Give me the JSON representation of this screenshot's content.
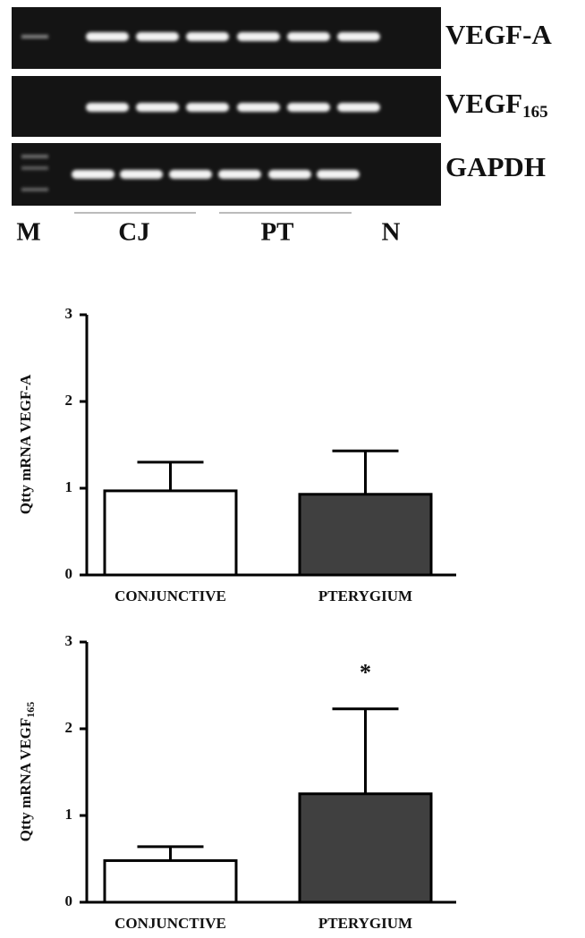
{
  "gel": {
    "rows": [
      {
        "label": "VEGF-A"
      },
      {
        "label": "VEGF",
        "label_sub": "165"
      },
      {
        "label": "GAPDH"
      }
    ],
    "lanes": [
      "M",
      "CJ",
      "PT",
      "N"
    ]
  },
  "chart_data": [
    {
      "type": "bar",
      "y_label": "Qtty mRNA VEGF-A",
      "categories": [
        "CONJUNCTIVE",
        "PTERYGIUM"
      ],
      "values": [
        0.97,
        0.93
      ],
      "errors": [
        0.33,
        0.5
      ],
      "colors": [
        "#ffffff",
        "#404040"
      ],
      "ylim": [
        0,
        3
      ],
      "yticks": [
        0,
        1,
        2,
        3
      ]
    },
    {
      "type": "bar",
      "y_label": {
        "text": "Qtty mRNA VEGF",
        "sub": "165"
      },
      "categories": [
        "CONJUNCTIVE",
        "PTERYGIUM"
      ],
      "values": [
        0.48,
        1.25
      ],
      "errors": [
        0.16,
        0.98
      ],
      "colors": [
        "#ffffff",
        "#404040"
      ],
      "ylim": [
        0,
        3
      ],
      "yticks": [
        0,
        1,
        2,
        3
      ],
      "annotations": [
        {
          "text": "*",
          "x": "PTERYGIUM"
        }
      ]
    }
  ]
}
